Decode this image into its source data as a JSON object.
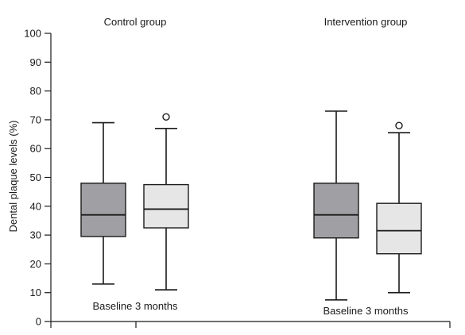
{
  "chart_data": {
    "type": "boxplot",
    "ylabel": "Dental plaque levels (%)",
    "ylim": [
      0,
      100
    ],
    "yticks": [
      0,
      10,
      20,
      30,
      40,
      50,
      60,
      70,
      80,
      90,
      100
    ],
    "grid": false,
    "colors": {
      "baseline": "#a0a0a4",
      "three_months": "#e6e6e6",
      "stroke": "#1a1a1a"
    },
    "groups": [
      {
        "title": "Control group",
        "axis_label": "Baseline 3 months",
        "boxes": [
          {
            "name": "Baseline",
            "whisker_low": 13,
            "q1": 29.5,
            "median": 37,
            "q3": 48,
            "whisker_high": 69,
            "outliers": []
          },
          {
            "name": "3 months",
            "whisker_low": 11,
            "q1": 32.5,
            "median": 39,
            "q3": 47.5,
            "whisker_high": 67,
            "outliers": [
              71
            ]
          }
        ]
      },
      {
        "title": "Intervention group",
        "axis_label": "Baseline 3 months",
        "boxes": [
          {
            "name": "Baseline",
            "whisker_low": 7.5,
            "q1": 29,
            "median": 37,
            "q3": 48,
            "whisker_high": 73,
            "outliers": []
          },
          {
            "name": "3 months",
            "whisker_low": 10,
            "q1": 23.5,
            "median": 31.5,
            "q3": 41,
            "whisker_high": 65.5,
            "outliers": [
              68
            ]
          }
        ]
      }
    ]
  }
}
